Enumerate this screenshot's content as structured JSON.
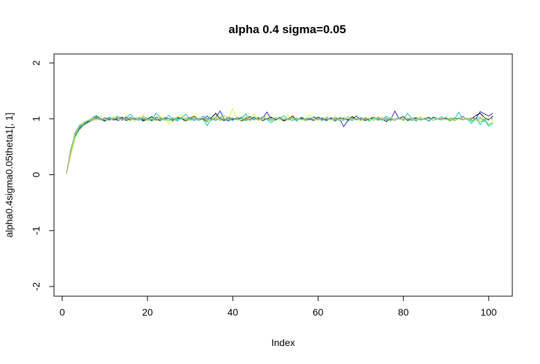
{
  "chart_data": {
    "type": "line",
    "title": "alpha 0.4 sigma=0.05",
    "xlabel": "Index",
    "ylabel": "alpha0.4sigma0.05theta1[, 1]",
    "xlim": [
      1,
      101
    ],
    "ylim": [
      -2,
      2
    ],
    "x_ticks": [
      "0",
      "20",
      "40",
      "60",
      "80",
      "100"
    ],
    "y_ticks": [
      "-2",
      "-1",
      "0",
      "1",
      "2"
    ],
    "grid": false,
    "legend": "none",
    "series_colors": [
      "#000000",
      "#2a1fbf",
      "#14b8b8",
      "#00c8a0",
      "#6fdc3c",
      "#e6f03a",
      "#a6a6a6"
    ],
    "series": [
      {
        "color": "#000000",
        "values": [
          0.02,
          0.45,
          0.72,
          0.85,
          0.9,
          0.95,
          1.0,
          1.04,
          1.0,
          0.96,
          1.02,
          0.98,
          1.0,
          1.03,
          0.97,
          1.01,
          0.99,
          1.02,
          0.96,
          1.0,
          1.04,
          0.99,
          0.97,
          1.02,
          1.0,
          0.98,
          1.03,
          1.0,
          0.96,
          1.01,
          1.05,
          0.98,
          1.0,
          0.95,
          1.02,
          1.1,
          1.0,
          0.97,
          1.03,
          0.99,
          1.01,
          0.96,
          1.0,
          1.04,
          0.98,
          1.02,
          0.97,
          1.0,
          1.03,
          0.99,
          1.01,
          0.96,
          1.0,
          1.05,
          0.98,
          1.02,
          0.99,
          1.0,
          0.97,
          1.03,
          1.0,
          0.98,
          1.01,
          0.96,
          1.02,
          1.0,
          0.98,
          1.04,
          0.99,
          1.01,
          0.97,
          1.0,
          1.03,
          0.98,
          1.0,
          0.95,
          1.02,
          0.99,
          1.01,
          1.04,
          0.97,
          1.0,
          1.02,
          0.98,
          1.0,
          0.96,
          1.03,
          1.0,
          0.99,
          1.02,
          0.97,
          1.01,
          1.0,
          1.04,
          0.98,
          1.0,
          1.06,
          1.1,
          1.02,
          0.98,
          1.05
        ]
      },
      {
        "color": "#2a1fbf",
        "values": [
          0.03,
          0.4,
          0.7,
          0.82,
          0.88,
          0.94,
          0.97,
          1.01,
          0.98,
          1.02,
          0.99,
          1.01,
          0.97,
          1.0,
          1.03,
          0.98,
          1.0,
          1.02,
          0.99,
          1.01,
          0.97,
          1.03,
          1.0,
          0.98,
          1.01,
          0.96,
          1.02,
          1.0,
          0.99,
          1.03,
          0.97,
          1.01,
          1.0,
          1.05,
          0.98,
          1.02,
          1.14,
          1.0,
          0.96,
          1.02,
          0.99,
          1.01,
          0.97,
          1.0,
          1.03,
          0.98,
          1.01,
          1.12,
          1.0,
          0.97,
          1.03,
          0.99,
          1.0,
          1.02,
          0.98,
          1.01,
          0.97,
          1.0,
          1.03,
          0.99,
          1.0,
          0.97,
          1.02,
          0.99,
          1.01,
          0.86,
          0.97,
          1.0,
          1.05,
          0.98,
          1.02,
          1.0,
          0.97,
          1.03,
          0.99,
          1.01,
          0.98,
          1.14,
          1.0,
          0.97,
          1.02,
          0.99,
          1.01,
          0.98,
          1.0,
          1.03,
          0.97,
          1.0,
          1.02,
          0.99,
          1.01,
          0.97,
          1.0,
          1.04,
          0.98,
          1.02,
          1.0,
          1.13,
          1.09,
          1.05,
          1.1
        ]
      },
      {
        "color": "#14b8b8",
        "values": [
          0.01,
          0.42,
          0.75,
          0.88,
          0.93,
          0.98,
          1.02,
          1.06,
          1.01,
          0.97,
          1.03,
          1.0,
          1.05,
          0.98,
          1.02,
          1.08,
          1.0,
          0.97,
          1.04,
          1.01,
          0.98,
          1.1,
          1.02,
          0.99,
          1.06,
          1.0,
          0.96,
          1.03,
          1.08,
          0.99,
          1.02,
          0.97,
          1.05,
          1.0,
          1.03,
          0.98,
          1.02,
          1.06,
          1.0,
          0.97,
          1.03,
          1.0,
          1.09,
          0.98,
          1.02,
          0.99,
          1.04,
          1.0,
          0.97,
          1.03,
          1.0,
          1.06,
          0.98,
          1.02,
          0.96,
          1.03,
          1.0,
          0.98,
          1.04,
          1.0,
          0.97,
          1.03,
          0.99,
          1.02,
          1.0,
          0.97,
          1.04,
          1.01,
          0.98,
          1.02,
          1.0,
          0.97,
          1.03,
          1.0,
          0.98,
          1.05,
          1.0,
          0.97,
          1.02,
          0.99,
          1.1,
          1.0,
          0.96,
          1.03,
          0.99,
          1.01,
          0.97,
          1.0,
          1.04,
          0.98,
          1.02,
          1.0,
          1.12,
          0.98,
          1.01,
          0.96,
          1.0,
          1.03,
          0.95,
          1.01,
          1.0
        ]
      },
      {
        "color": "#00c8a0",
        "values": [
          0.02,
          0.38,
          0.68,
          0.84,
          0.9,
          0.96,
          0.99,
          1.03,
          1.0,
          0.98,
          1.02,
          0.99,
          1.01,
          0.97,
          1.0,
          1.03,
          0.99,
          1.01,
          0.98,
          1.0,
          0.96,
          1.02,
          1.0,
          0.98,
          1.01,
          0.97,
          1.0,
          1.02,
          0.98,
          1.0,
          0.97,
          1.01,
          0.99,
          0.88,
          1.0,
          0.97,
          1.02,
          0.99,
          1.01,
          0.98,
          1.0,
          1.03,
          0.97,
          1.0,
          1.02,
          0.98,
          1.01,
          0.99,
          0.93,
          1.0,
          1.02,
          0.98,
          1.0,
          0.97,
          1.01,
          0.99,
          1.0,
          1.02,
          0.98,
          1.0,
          0.97,
          1.01,
          0.99,
          1.0,
          0.98,
          1.02,
          1.0,
          0.97,
          1.01,
          0.99,
          1.0,
          0.96,
          1.02,
          1.0,
          0.98,
          1.01,
          0.97,
          1.0,
          1.02,
          0.98,
          1.0,
          0.97,
          1.01,
          0.99,
          1.0,
          0.96,
          1.02,
          1.0,
          0.98,
          1.01,
          0.97,
          1.0,
          1.02,
          0.99,
          1.0,
          0.92,
          1.01,
          0.9,
          0.99,
          0.87,
          0.92
        ]
      },
      {
        "color": "#6fdc3c",
        "values": [
          0.01,
          0.36,
          0.66,
          0.8,
          0.88,
          0.93,
          0.97,
          1.0,
          0.98,
          1.01,
          0.97,
          1.0,
          1.03,
          0.98,
          1.0,
          0.97,
          1.02,
          0.99,
          1.01,
          0.97,
          1.0,
          1.02,
          0.98,
          1.0,
          0.96,
          1.01,
          0.99,
          1.0,
          1.02,
          0.97,
          1.0,
          0.99,
          1.01,
          0.98,
          1.0,
          1.02,
          0.97,
          1.0,
          0.99,
          1.01,
          0.98,
          1.0,
          1.02,
          0.97,
          1.0,
          0.98,
          1.01,
          0.99,
          1.0,
          0.97,
          1.02,
          1.0,
          0.98,
          1.01,
          0.99,
          1.0,
          0.97,
          1.02,
          0.99,
          1.0,
          0.98,
          1.01,
          0.99,
          1.0,
          0.97,
          1.02,
          1.0,
          0.98,
          1.01,
          0.99,
          1.0,
          0.97,
          1.01,
          0.99,
          1.0,
          0.98,
          1.02,
          0.99,
          1.0,
          0.97,
          1.01,
          0.99,
          1.0,
          0.98,
          1.02,
          1.0,
          0.97,
          1.01,
          0.99,
          1.0,
          0.96,
          1.02,
          1.0,
          0.98,
          1.01,
          0.97,
          1.0,
          0.95,
          0.99,
          0.9,
          0.94
        ]
      },
      {
        "color": "#e6f03a",
        "values": [
          0.02,
          0.4,
          0.72,
          0.86,
          0.94,
          0.98,
          1.02,
          0.97,
          1.05,
          1.0,
          0.96,
          1.04,
          1.01,
          0.97,
          1.06,
          1.0,
          0.95,
          1.03,
          1.07,
          0.98,
          1.02,
          0.96,
          1.05,
          1.0,
          0.9,
          0.96,
          1.03,
          1.08,
          0.97,
          1.02,
          1.06,
          0.99,
          1.03,
          0.96,
          1.0,
          1.04,
          0.98,
          1.06,
          1.02,
          1.18,
          1.0,
          0.97,
          1.04,
          1.0,
          1.08,
          0.96,
          1.02,
          1.05,
          0.99,
          1.03,
          0.97,
          1.01,
          1.06,
          0.99,
          1.03,
          0.97,
          1.01,
          1.08,
          1.0,
          0.96,
          1.03,
          1.0,
          0.97,
          1.05,
          1.0,
          0.98,
          1.03,
          0.99,
          1.01,
          0.95,
          1.03,
          1.0,
          0.97,
          1.04,
          1.0,
          0.98,
          1.03,
          0.99,
          1.01,
          0.96,
          1.02,
          1.0,
          0.98,
          1.04,
          0.99,
          1.01,
          0.97,
          1.0,
          1.03,
          0.98,
          1.02,
          0.96,
          1.0,
          1.03,
          0.98,
          1.01,
          0.97,
          1.0,
          1.03,
          1.0,
          0.97
        ]
      },
      {
        "color": "#a6a6a6",
        "values": [
          0.03,
          0.44,
          0.74,
          0.87,
          0.92,
          0.96,
          1.0,
          1.03,
          0.99,
          1.01,
          0.97,
          1.0,
          1.02,
          0.98,
          1.0,
          1.01,
          0.98,
          1.0,
          1.02,
          0.99,
          1.0,
          0.97,
          1.01,
          0.99,
          1.0,
          1.02,
          0.98,
          1.0,
          0.99,
          1.01,
          0.98,
          1.0,
          1.02,
          0.99,
          1.0,
          0.97,
          1.01,
          0.99,
          1.0,
          1.02,
          0.98,
          1.0,
          0.99,
          1.01,
          0.98,
          1.0,
          1.02,
          0.99,
          1.0,
          0.97,
          1.01,
          0.99,
          1.0,
          1.02,
          0.98,
          1.0,
          0.99,
          1.01,
          0.98,
          1.0,
          1.02,
          0.99,
          1.0,
          0.97,
          1.01,
          0.99,
          1.0,
          1.02,
          0.98,
          1.0,
          0.99,
          1.01,
          0.98,
          1.0,
          1.02,
          0.99,
          1.0,
          0.97,
          1.01,
          0.99,
          1.0,
          1.02,
          0.98,
          1.0,
          0.99,
          1.01,
          0.98,
          1.0,
          1.02,
          0.99,
          1.0,
          0.97,
          1.01,
          0.99,
          1.0,
          1.02,
          0.98,
          1.0,
          0.99,
          1.01,
          1.0
        ]
      }
    ]
  }
}
